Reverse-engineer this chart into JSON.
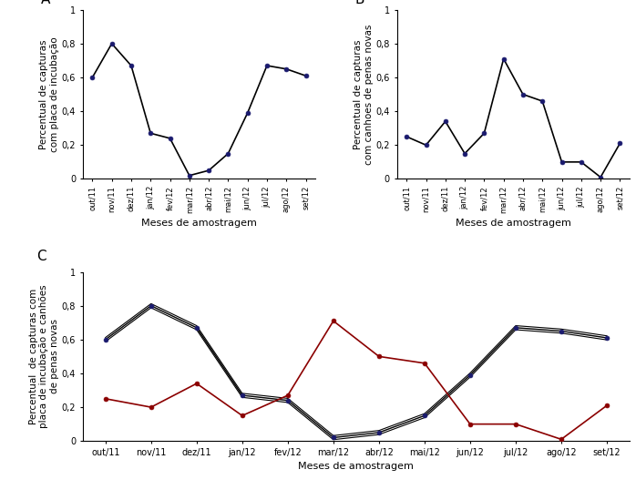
{
  "months": [
    "out/11",
    "nov/11",
    "dez/11",
    "jan/12",
    "fev/12",
    "mar/12",
    "abr/12",
    "mai/12",
    "jun/12",
    "jul/12",
    "ago/12",
    "set/12"
  ],
  "series_A": [
    0.6,
    0.8,
    0.67,
    0.27,
    0.24,
    0.02,
    0.05,
    0.15,
    0.39,
    0.67,
    0.65,
    0.61
  ],
  "series_B": [
    0.25,
    0.2,
    0.34,
    0.15,
    0.27,
    0.71,
    0.5,
    0.46,
    0.1,
    0.1,
    0.01,
    0.21
  ],
  "ylabel_A": "Percentual de capturas\ncom placa de incubação",
  "ylabel_B": "Percentual de capturas\ncom canhoes de penas novas",
  "ylabel_C": "Percentual  de capturas com\nplaca de incubação e canhões\nde penas novas",
  "xlabel": "Meses de amostragem",
  "ylim": [
    0,
    1
  ],
  "yticks": [
    0,
    0.2,
    0.4,
    0.6,
    0.8,
    1
  ],
  "ytick_labels": [
    "0",
    "0,2",
    "0,4",
    "0,6",
    "0,8",
    "1"
  ],
  "line_color": "#000000",
  "line_color_B_panel": "#8B0000",
  "marker": "o",
  "markersize": 3.5,
  "linewidth": 1.2,
  "panel_label_fontsize": 11,
  "axis_fontsize": 7.5,
  "tick_fontsize": 7,
  "xlabel_fontsize": 8
}
